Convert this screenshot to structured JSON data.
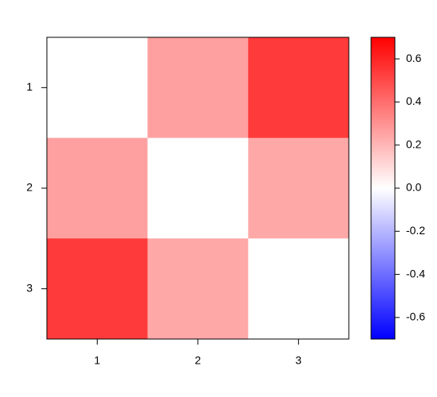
{
  "chart_data": {
    "type": "heatmap",
    "x_categories": [
      "1",
      "2",
      "3"
    ],
    "y_categories": [
      "1",
      "2",
      "3"
    ],
    "z": [
      [
        0,
        0.26,
        0.54
      ],
      [
        0.26,
        0,
        0.24
      ],
      [
        0.54,
        0.24,
        0
      ]
    ],
    "colorscale": [
      "#0000ff",
      "#ffffff",
      "#ff0000"
    ],
    "zlim": [
      -0.7,
      0.7
    ],
    "zticks": [
      0.6,
      0.4,
      0.2,
      {
        "value": 0,
        "label": "0.0"
      },
      -0.2,
      -0.4,
      -0.6
    ]
  }
}
